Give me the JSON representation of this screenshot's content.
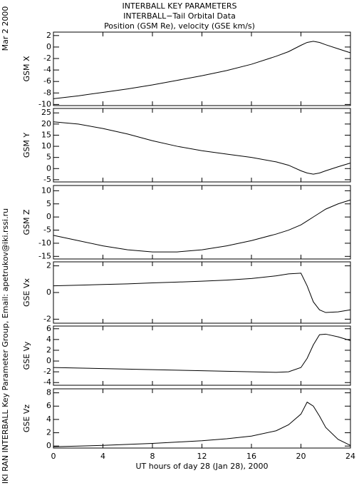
{
  "titles": [
    "INTERBALL KEY PARAMETERS",
    "INTERBALL−Tail Orbital Data",
    "Position (GSM Re), velocity (GSE km/s)"
  ],
  "side_labels": [
    "Mar  2 2000",
    "IKI RAN INTERBALL Key Parameter Group, Email: apetrukov@iki.rssi.ru"
  ],
  "chart_data": [
    {
      "type": "line",
      "ylabel": "GSM X",
      "color": "#000000",
      "x": [
        0,
        2,
        4,
        6,
        8,
        10,
        12,
        14,
        16,
        18,
        19,
        20,
        20.5,
        21,
        21.5,
        22,
        23,
        24
      ],
      "values": [
        -9,
        -8.5,
        -7.9,
        -7.3,
        -6.6,
        -5.8,
        -5,
        -4.1,
        -3,
        -1.6,
        -0.8,
        0.3,
        0.8,
        1,
        0.8,
        0.4,
        -0.3,
        -1
      ],
      "xlim": [
        0,
        24
      ],
      "xticks": [
        0,
        4,
        8,
        12,
        16,
        20,
        24
      ],
      "ylim": [
        -10.2,
        2.6
      ],
      "yticks": [
        2,
        0,
        -2,
        -4,
        -6,
        -8,
        -10
      ]
    },
    {
      "type": "line",
      "ylabel": "GSM Y",
      "color": "#000000",
      "x": [
        0,
        2,
        4,
        6,
        8,
        10,
        12,
        14,
        16,
        18,
        19,
        20,
        20.5,
        21,
        21.5,
        22,
        23,
        24
      ],
      "values": [
        21,
        20,
        18,
        15.5,
        12.5,
        10,
        8,
        6.5,
        5,
        3,
        1.5,
        -1,
        -2,
        -2.5,
        -2,
        -1,
        0.8,
        2.5
      ],
      "xlim": [
        0,
        24
      ],
      "xticks": [
        0,
        4,
        8,
        12,
        16,
        20,
        24
      ],
      "ylim": [
        -6,
        27
      ],
      "yticks": [
        25,
        20,
        15,
        10,
        5,
        0,
        -5
      ]
    },
    {
      "type": "line",
      "ylabel": "GSM Z",
      "color": "#000000",
      "x": [
        0,
        2,
        4,
        6,
        8,
        10,
        12,
        14,
        16,
        18,
        19,
        20,
        20.5,
        21,
        21.5,
        22,
        23,
        24
      ],
      "values": [
        -7,
        -9,
        -11,
        -12.5,
        -13.3,
        -13.3,
        -12.5,
        -11,
        -9,
        -6.5,
        -5,
        -3,
        -1.5,
        0,
        1.5,
        3,
        5,
        6.5
      ],
      "xlim": [
        0,
        24
      ],
      "xticks": [
        0,
        4,
        8,
        12,
        16,
        20,
        24
      ],
      "ylim": [
        -16,
        12
      ],
      "yticks": [
        10,
        5,
        0,
        -5,
        -10,
        -15
      ]
    },
    {
      "type": "line",
      "ylabel": "GSE Vx",
      "color": "#000000",
      "x": [
        0,
        2,
        4,
        6,
        8,
        10,
        12,
        14,
        16,
        18,
        19,
        20,
        20.5,
        21,
        21.5,
        22,
        23,
        24
      ],
      "values": [
        0.5,
        0.55,
        0.6,
        0.65,
        0.72,
        0.78,
        0.85,
        0.93,
        1.05,
        1.25,
        1.4,
        1.45,
        0.5,
        -0.7,
        -1.3,
        -1.5,
        -1.45,
        -1.3
      ],
      "xlim": [
        0,
        24
      ],
      "xticks": [
        0,
        4,
        8,
        12,
        16,
        20,
        24
      ],
      "ylim": [
        -2.3,
        2.3
      ],
      "yticks": [
        2,
        0,
        -2
      ]
    },
    {
      "type": "line",
      "ylabel": "GSE Vy",
      "color": "#000000",
      "x": [
        0,
        2,
        4,
        6,
        8,
        10,
        12,
        14,
        16,
        18,
        19,
        20,
        20.5,
        21,
        21.5,
        22,
        23,
        24
      ],
      "values": [
        -1.2,
        -1.3,
        -1.4,
        -1.5,
        -1.6,
        -1.7,
        -1.8,
        -1.9,
        -2,
        -2.1,
        -2,
        -1.2,
        0.5,
        3,
        4.9,
        5,
        4.5,
        3.8
      ],
      "xlim": [
        0,
        24
      ],
      "xticks": [
        0,
        4,
        8,
        12,
        16,
        20,
        24
      ],
      "ylim": [
        -4.5,
        6.5
      ],
      "yticks": [
        6,
        4,
        2,
        0,
        -2,
        -4
      ]
    },
    {
      "type": "line",
      "ylabel": "GSE Vz",
      "color": "#000000",
      "x": [
        0,
        2,
        4,
        6,
        8,
        10,
        12,
        14,
        16,
        18,
        19,
        20,
        20.5,
        21,
        21.5,
        22,
        23,
        24
      ],
      "values": [
        -0.1,
        0,
        0.1,
        0.25,
        0.4,
        0.6,
        0.8,
        1.1,
        1.5,
        2.3,
        3.2,
        4.8,
        6.6,
        6,
        4.5,
        2.8,
        1,
        0.1
      ],
      "xlim": [
        0,
        24
      ],
      "xticks": [
        0,
        4,
        8,
        12,
        16,
        20,
        24
      ],
      "ylim": [
        -0.3,
        8.6
      ],
      "yticks": [
        8,
        6,
        4,
        2,
        0
      ],
      "xlabel": "UT hours of day  28 (Jan 28), 2000"
    }
  ]
}
